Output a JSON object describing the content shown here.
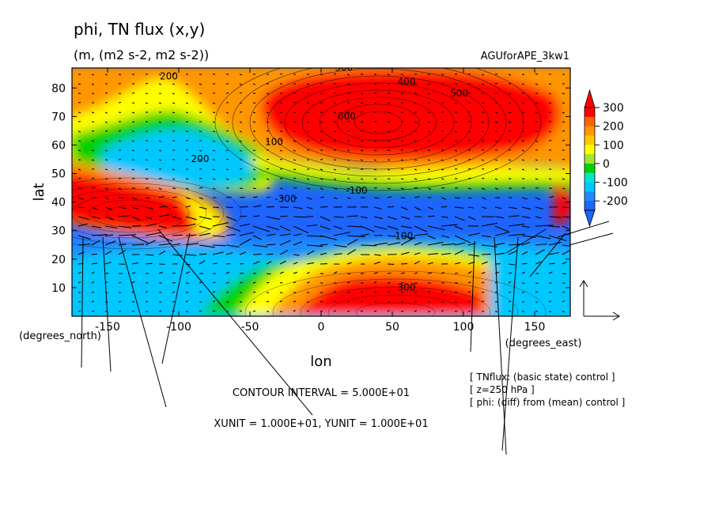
{
  "header": {
    "title": "phi, TN flux (x,y)",
    "subtitle": "(m, (m2 s-2, m2 s-2))",
    "experiment": "AGUforAPE_3kw1"
  },
  "chart_data": {
    "type": "heatmap",
    "xlabel": "lon",
    "ylabel": "lat",
    "x_unit_label": "(degrees_east)",
    "y_unit_label": "(degrees_north)",
    "xlim": [
      -175,
      175
    ],
    "ylim": [
      0,
      87
    ],
    "xticks": [
      -150,
      -100,
      -50,
      0,
      50,
      100,
      150
    ],
    "xtick_labels": [
      "-150",
      "-100",
      "-50",
      "0",
      "50",
      "100",
      "150"
    ],
    "yticks": [
      10,
      20,
      30,
      40,
      50,
      60,
      70,
      80
    ],
    "ytick_labels": [
      "10",
      "20",
      "30",
      "40",
      "50",
      "60",
      "70",
      "80"
    ],
    "colorbar": {
      "levels": [
        -250,
        -200,
        -150,
        -100,
        -50,
        0,
        50,
        100,
        150,
        200,
        250,
        300
      ],
      "colors": [
        "#1e64ff",
        "#1e8cff",
        "#00c8ff",
        "#00e6d2",
        "#00d200",
        "#a0e632",
        "#ffff00",
        "#ffc800",
        "#ff9600",
        "#ff6400",
        "#ff0000"
      ],
      "labels": [
        "300",
        "200",
        "100",
        "0",
        "-100",
        "-200"
      ],
      "label_values": [
        300,
        200,
        100,
        0,
        -100,
        -200
      ]
    },
    "contour_labels": [
      {
        "text": "200",
        "lon": -107,
        "lat": 83
      },
      {
        "text": "300",
        "lon": 16,
        "lat": 86
      },
      {
        "text": "400",
        "lon": 60,
        "lat": 81
      },
      {
        "text": "500",
        "lon": 97,
        "lat": 77
      },
      {
        "text": "600",
        "lon": 18,
        "lat": 69
      },
      {
        "text": "100",
        "lon": -33,
        "lat": 60
      },
      {
        "text": "200",
        "lon": -85,
        "lat": 54
      },
      {
        "text": "-300",
        "lon": -25,
        "lat": 40
      },
      {
        "text": "-100",
        "lon": 25,
        "lat": 43
      },
      {
        "text": "-100",
        "lon": 57,
        "lat": 27
      },
      {
        "text": "300",
        "lon": 60,
        "lat": 9
      }
    ],
    "field_description_lines": [
      "[ TNflux: (basic state) control ]",
      "[ z=250 hPa ]",
      "[ phi: (diff) from (mean) control ]"
    ],
    "contour_interval_text": "CONTOUR INTERVAL = 5.000E+01",
    "unit_vector_text": "XUNIT = 1.000E+01, YUNIT = 1.000E+01"
  }
}
